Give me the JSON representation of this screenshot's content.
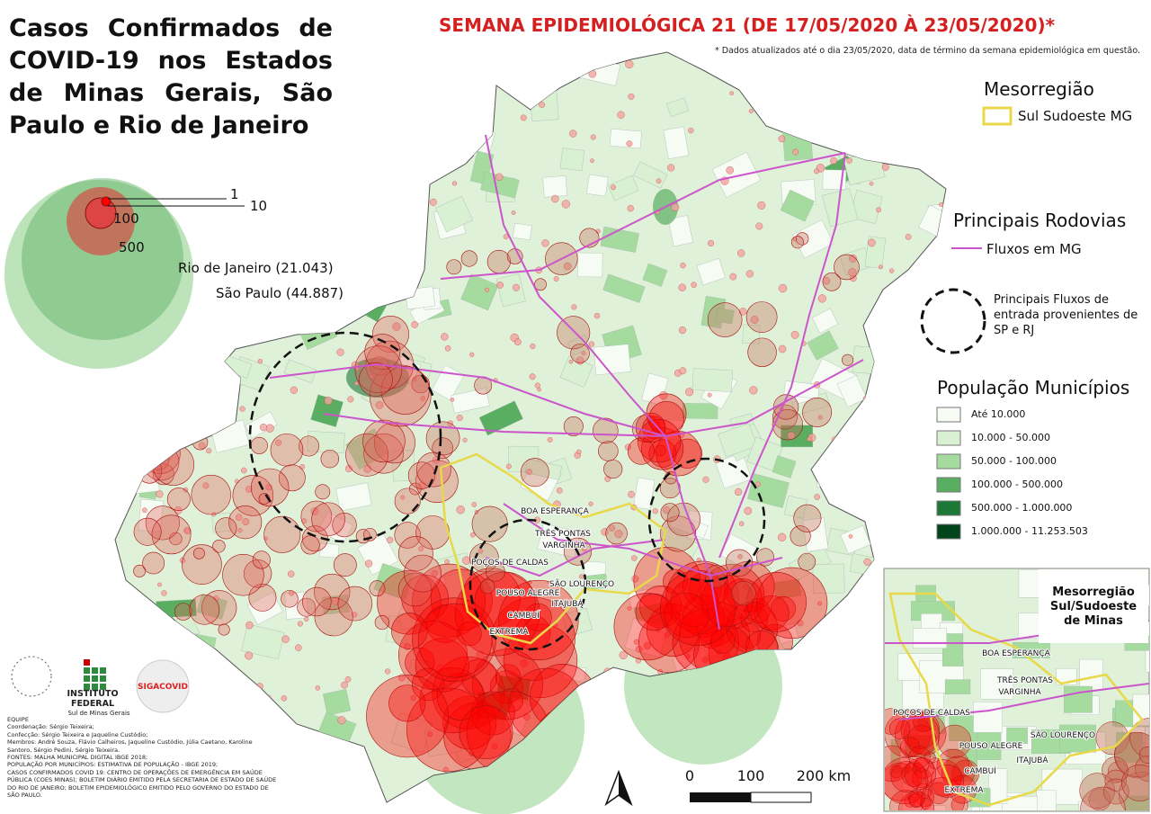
{
  "header": {
    "title": "Casos Confirmados de COVID-19 nos Estados de Minas Gerais, São Paulo e Rio de Janeiro",
    "week": "SEMANA EPIDEMIOLÓGICA 21 (DE 17/05/2020 À 23/05/2020)*",
    "note": "* Dados atualizados até o dia 23/05/2020, data de término da semana epidemiológica em questão."
  },
  "bubble_legend": {
    "sizes": [
      "1",
      "10",
      "100",
      "500"
    ],
    "states": [
      "Rio de Janeiro (21.043)",
      "São Paulo (44.887)"
    ]
  },
  "legend": {
    "mesorregiao": {
      "title": "Mesorregião",
      "item": "Sul Sudoeste MG"
    },
    "rodovias": {
      "title": "Principais Rodovias",
      "item": "Fluxos em MG"
    },
    "fluxos": "Principais Fluxos de entrada provenientes de SP e RJ",
    "populacao": {
      "title": "População Municípios",
      "items": [
        "Até 10.000",
        "10.000 - 50.000",
        "50.000 - 100.000",
        "100.000 - 500.000",
        "500.000 - 1.000.000",
        "1.000.000 - 11.253.503"
      ]
    }
  },
  "cities": [
    "BOA ESPERANÇA",
    "TRÊS PONTAS",
    "VARGINHA",
    "POÇOS DE CALDAS",
    "SÃO LOURENÇO",
    "POUSO ALEGRE",
    "ITAJUBÁ",
    "CAMBUÍ",
    "EXTREMA"
  ],
  "inset": {
    "title": "Mesorregião Sul/Sudoeste de Minas"
  },
  "scale": [
    "0",
    "100",
    "200 km"
  ],
  "logos": {
    "ifsul": [
      "INSTITUTO",
      "FEDERAL",
      "Sul de Minas Gerais"
    ],
    "siga": "SIGACOVID"
  },
  "credits": [
    "EQUIPE",
    "Coordenação: Sérgio Teixeira;",
    "Confecção: Sérgio Teixeira e Jaqueline Custódio;",
    "Membros: André Souza, Flávio Calheiros, Jaqueline Custódio, Júlia Caetano, Karoline Santoro, Sérgio Pedini, Sérgio Teixeira.",
    "FONTES: MALHA MUNICIPAL DIGITAL IBGE 2018;",
    "POPULAÇÃO POR MUNICÍPIOS: ESTIMATIVA DE POPULAÇÃO - IBGE 2019;",
    "CASOS CONFIRMADOS COVID 19: CENTRO DE OPERAÇÕES DE EMERGÊNCIA EM SAÚDE PÚBLICA (COES MINAS); BOLETIM DIÁRIO EMITIDO PELA SECRETARIA DE ESTADO DE SAÚDE DO RIO DE JANEIRO; BOLETIM EPIDEMIOLÓGICO EMITIDO PELO GOVERNO DO ESTADO DE SÃO PAULO."
  ]
}
